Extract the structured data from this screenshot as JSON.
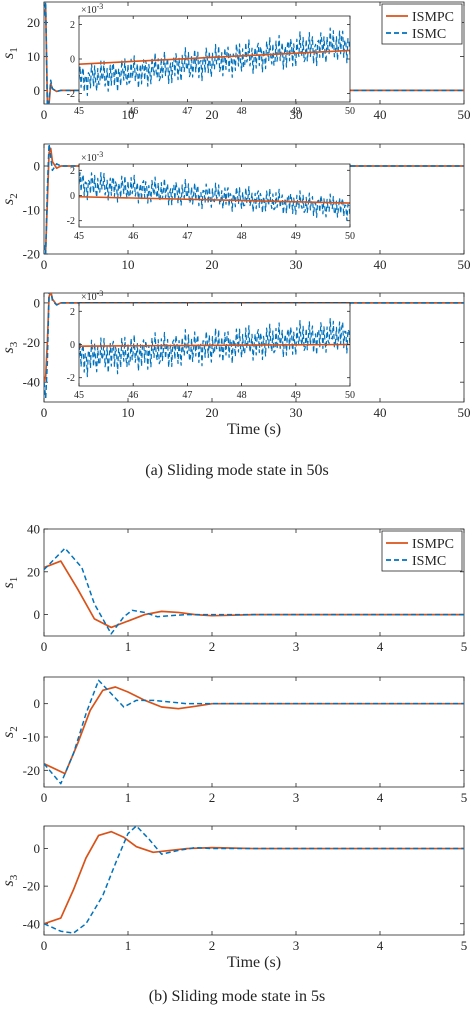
{
  "colors": {
    "ismpc": "#D95319",
    "ismc": "#0072BD",
    "axis": "#262626"
  },
  "captions": {
    "a": "(a)  Sliding mode state in 50s",
    "b": "(b)  Sliding mode state in 5s"
  },
  "chart_data": [
    {
      "type": "line",
      "id": "a1",
      "xlim": [
        0,
        50
      ],
      "ylim": [
        -4,
        26
      ],
      "xticks": [
        0,
        10,
        20,
        30,
        40,
        50
      ],
      "yticks": [
        0,
        10,
        20
      ],
      "xtick_labels": [
        "0",
        "10",
        "20",
        "30",
        "40",
        "50"
      ],
      "ytick_labels": [
        "0",
        "10",
        "20"
      ],
      "ylabel": "s",
      "ylabel_sub": "1",
      "xlabel": "",
      "legend": {
        "placement": "top-right",
        "entries": [
          "ISMPC",
          "ISMC"
        ]
      },
      "series": [
        {
          "name": "ISMPC",
          "x": [
            0,
            0.2,
            0.4,
            0.6,
            0.8,
            1.0,
            1.5,
            2,
            50
          ],
          "y": [
            22,
            24,
            -3,
            -4,
            2,
            0.5,
            -0.3,
            0,
            0
          ]
        },
        {
          "name": "ISMC",
          "x": [
            0,
            0.2,
            0.4,
            0.6,
            0.8,
            1.0,
            1.5,
            2,
            50
          ],
          "y": [
            22,
            26,
            -6,
            -3,
            3,
            0.5,
            -0.3,
            0,
            0
          ]
        }
      ],
      "inset": {
        "xlim": [
          45,
          50
        ],
        "ylim": [
          -2.5,
          2.5
        ],
        "xticks": [
          45,
          46,
          47,
          48,
          49,
          50
        ],
        "yticks": [
          -2,
          0,
          2
        ],
        "xtick_labels": [
          "45",
          "46",
          "47",
          "48",
          "49",
          "50"
        ],
        "ytick_labels": [
          "-2",
          "0",
          "2"
        ],
        "scale_label": "×10",
        "scale_exp": "-3",
        "ismpc": {
          "start": -0.3,
          "end": 0.5
        },
        "ismc": {
          "amp_start": 1.0,
          "amp_end": 1.1,
          "center_start": -1.2,
          "center_end": 0.9
        }
      }
    },
    {
      "type": "line",
      "id": "a2",
      "xlim": [
        0,
        50
      ],
      "ylim": [
        -20,
        5
      ],
      "xticks": [
        0,
        10,
        20,
        30,
        40,
        50
      ],
      "yticks": [
        -20,
        -10,
        0
      ],
      "xtick_labels": [
        "0",
        "10",
        "20",
        "30",
        "40",
        "50"
      ],
      "ytick_labels": [
        "-20",
        "-10",
        "0"
      ],
      "ylabel": "s",
      "ylabel_sub": "2",
      "xlabel": "",
      "series": [
        {
          "name": "ISMPC",
          "x": [
            0,
            0.2,
            0.4,
            0.6,
            0.8,
            1.0,
            1.5,
            2,
            50
          ],
          "y": [
            -18,
            -19,
            -8,
            3,
            4,
            1,
            -0.5,
            0,
            0
          ]
        },
        {
          "name": "ISMC",
          "x": [
            0,
            0.2,
            0.4,
            0.6,
            0.8,
            1.0,
            1.5,
            2,
            50
          ],
          "y": [
            -18,
            -20,
            -5,
            5,
            2,
            -1,
            0.5,
            0,
            0
          ]
        }
      ],
      "inset": {
        "xlim": [
          45,
          50
        ],
        "ylim": [
          -2.5,
          2.5
        ],
        "xticks": [
          45,
          46,
          47,
          48,
          49,
          50
        ],
        "yticks": [
          -2,
          0,
          2
        ],
        "xtick_labels": [
          "45",
          "46",
          "47",
          "48",
          "49",
          "50"
        ],
        "ytick_labels": [
          "-2",
          "0",
          "2"
        ],
        "scale_label": "×10",
        "scale_exp": "-3",
        "ismpc": {
          "start": -0.1,
          "end": -0.6
        },
        "ismc": {
          "amp_start": 1.2,
          "amp_end": 1.0,
          "center_start": 0.9,
          "center_end": -1.0
        }
      }
    },
    {
      "type": "line",
      "id": "a3",
      "xlim": [
        0,
        50
      ],
      "ylim": [
        -50,
        5
      ],
      "xticks": [
        0,
        10,
        20,
        30,
        40,
        50
      ],
      "yticks": [
        -40,
        -20,
        0
      ],
      "xtick_labels": [
        "0",
        "10",
        "20",
        "30",
        "40",
        "50"
      ],
      "ytick_labels": [
        "-40",
        "-20",
        "0"
      ],
      "ylabel": "s",
      "ylabel_sub": "3",
      "xlabel": "Time (s)",
      "series": [
        {
          "name": "ISMPC",
          "x": [
            0,
            0.2,
            0.4,
            0.6,
            0.8,
            1.0,
            1.5,
            2,
            50
          ],
          "y": [
            -40,
            -37,
            -20,
            3,
            6,
            2,
            -1,
            0,
            0
          ]
        },
        {
          "name": "ISMC",
          "x": [
            0,
            0.2,
            0.4,
            0.6,
            0.8,
            1.0,
            1.5,
            2,
            50
          ],
          "y": [
            -40,
            -48,
            -30,
            5,
            8,
            1,
            -1,
            0,
            0
          ]
        }
      ],
      "inset": {
        "xlim": [
          45,
          50
        ],
        "ylim": [
          -2.5,
          2.5
        ],
        "xticks": [
          45,
          46,
          47,
          48,
          49,
          50
        ],
        "yticks": [
          -2,
          0,
          2
        ],
        "xtick_labels": [
          "45",
          "46",
          "47",
          "48",
          "49",
          "50"
        ],
        "ytick_labels": [
          "-2",
          "0",
          "2"
        ],
        "scale_label": "×10",
        "scale_exp": "-3",
        "ismpc": {
          "start": -0.1,
          "end": 0.0
        },
        "ismc": {
          "amp_start": 1.2,
          "amp_end": 1.1,
          "center_start": -0.8,
          "center_end": 0.6
        }
      }
    },
    {
      "type": "line",
      "id": "b1",
      "xlim": [
        0,
        5
      ],
      "ylim": [
        -10,
        40
      ],
      "xticks": [
        0,
        1,
        2,
        3,
        4,
        5
      ],
      "yticks": [
        0,
        20,
        40
      ],
      "xtick_labels": [
        "0",
        "1",
        "2",
        "3",
        "4",
        "5"
      ],
      "ytick_labels": [
        "0",
        "20",
        "40"
      ],
      "ylabel": "s",
      "ylabel_sub": "1",
      "xlabel": "",
      "legend": {
        "placement": "top-right",
        "entries": [
          "ISMPC",
          "ISMC"
        ]
      },
      "series": [
        {
          "name": "ISMPC",
          "x": [
            0,
            0.2,
            0.4,
            0.6,
            0.8,
            1.0,
            1.2,
            1.4,
            1.6,
            1.8,
            2.0,
            2.5,
            3,
            4,
            5
          ],
          "y": [
            22,
            25,
            12,
            -2,
            -6,
            -3,
            0,
            1.5,
            1,
            0,
            -0.5,
            0,
            0,
            0,
            0
          ]
        },
        {
          "name": "ISMC",
          "x": [
            0,
            0.25,
            0.45,
            0.6,
            0.8,
            0.95,
            1.05,
            1.2,
            1.35,
            1.5,
            1.7,
            2.0,
            2.5,
            3,
            4,
            5
          ],
          "y": [
            21,
            31,
            22,
            5,
            -9,
            -1,
            2,
            1,
            -1,
            -0.5,
            0,
            0,
            0,
            0,
            0,
            0
          ]
        }
      ]
    },
    {
      "type": "line",
      "id": "b2",
      "xlim": [
        0,
        5
      ],
      "ylim": [
        -25,
        8
      ],
      "xticks": [
        0,
        1,
        2,
        3,
        4,
        5
      ],
      "yticks": [
        -20,
        -10,
        0
      ],
      "xtick_labels": [
        "0",
        "1",
        "2",
        "3",
        "4",
        "5"
      ],
      "ytick_labels": [
        "-20",
        "-10",
        "0"
      ],
      "ylabel": "s",
      "ylabel_sub": "2",
      "xlabel": "",
      "series": [
        {
          "name": "ISMPC",
          "x": [
            0,
            0.25,
            0.4,
            0.55,
            0.7,
            0.85,
            1.0,
            1.2,
            1.4,
            1.6,
            1.8,
            2.0,
            2.5,
            3,
            4,
            5
          ],
          "y": [
            -18,
            -21,
            -12,
            -2,
            4,
            5,
            3.5,
            1,
            -1,
            -1.5,
            -0.8,
            0,
            0,
            0,
            0,
            0
          ]
        },
        {
          "name": "ISMC",
          "x": [
            0,
            0.2,
            0.35,
            0.5,
            0.65,
            0.8,
            0.95,
            1.1,
            1.3,
            1.5,
            1.7,
            2.0,
            2.5,
            3,
            4,
            5
          ],
          "y": [
            -18,
            -24,
            -15,
            -3,
            7,
            3,
            -1,
            1,
            1,
            0.5,
            0,
            0,
            0,
            0,
            0,
            0
          ]
        }
      ]
    },
    {
      "type": "line",
      "id": "b3",
      "xlim": [
        0,
        5
      ],
      "ylim": [
        -46,
        12
      ],
      "xticks": [
        0,
        1,
        2,
        3,
        4,
        5
      ],
      "yticks": [
        -40,
        -20,
        0
      ],
      "xtick_labels": [
        "0",
        "1",
        "2",
        "3",
        "4",
        "5"
      ],
      "ytick_labels": [
        "-40",
        "-20",
        "0"
      ],
      "ylabel": "s",
      "ylabel_sub": "3",
      "xlabel": "Time (s)",
      "series": [
        {
          "name": "ISMPC",
          "x": [
            0,
            0.2,
            0.35,
            0.5,
            0.65,
            0.8,
            0.95,
            1.1,
            1.3,
            1.5,
            1.7,
            2.0,
            2.5,
            3,
            4,
            5
          ],
          "y": [
            -40,
            -37,
            -22,
            -5,
            7,
            9,
            6,
            1,
            -2,
            -1,
            0,
            0.5,
            0,
            0,
            0,
            0
          ]
        },
        {
          "name": "ISMC",
          "x": [
            0,
            0.2,
            0.35,
            0.5,
            0.7,
            0.85,
            1.0,
            1.1,
            1.25,
            1.4,
            1.6,
            1.8,
            2.0,
            2.5,
            3,
            4,
            5
          ],
          "y": [
            -40,
            -44,
            -45,
            -40,
            -25,
            -8,
            8,
            12,
            5,
            -3,
            -1,
            0.5,
            0,
            0,
            0,
            0,
            0
          ]
        }
      ]
    }
  ]
}
